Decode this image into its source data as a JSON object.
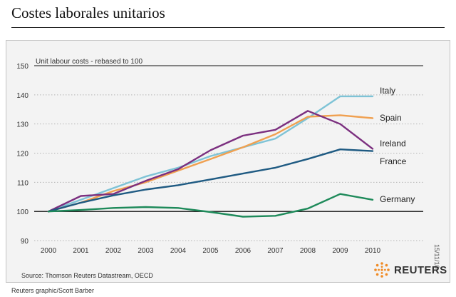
{
  "page": {
    "title": "Costes laborales unitarios",
    "source": "Source: Thomson Reuters Datastream, OECD",
    "credit": "Reuters graphic/Scott Barber",
    "datestamp": "15/11/10",
    "brand": "REUTERS"
  },
  "colors": {
    "panel_bg": "#f3f3f3",
    "baseline": "#000000",
    "brand_orange": "#f08a24"
  },
  "chart_data": {
    "type": "line",
    "subtitle": "Unit labour costs - rebased to 100",
    "x": [
      "2000",
      "2001",
      "2002",
      "2003",
      "2004",
      "2005",
      "2006",
      "2007",
      "2008",
      "2009",
      "2010"
    ],
    "ylim": [
      90,
      150
    ],
    "yticks": [
      90,
      100,
      110,
      120,
      130,
      140,
      150
    ],
    "reference_line": 100,
    "grid": "dotted-horizontal",
    "series": [
      {
        "name": "Italy",
        "color": "#7ec3d6",
        "values": [
          100,
          104,
          108,
          112,
          115,
          119,
          122,
          125,
          132,
          139.5,
          139.5
        ]
      },
      {
        "name": "Spain",
        "color": "#f0a050",
        "values": [
          100,
          103,
          107,
          110,
          114,
          118,
          122,
          126.5,
          132.5,
          133,
          132
        ]
      },
      {
        "name": "Ireland",
        "color": "#7b2f7f",
        "values": [
          100,
          105.3,
          106,
          110.5,
          114.5,
          121,
          126,
          128,
          134.5,
          130,
          121.5
        ]
      },
      {
        "name": "France",
        "color": "#1e5a82",
        "values": [
          100,
          103,
          105.5,
          107.5,
          109,
          111,
          113,
          115,
          118,
          121.3,
          120.7
        ]
      },
      {
        "name": "Germany",
        "color": "#1e8a5a",
        "values": [
          100,
          100.5,
          101.2,
          101.5,
          101.2,
          99.8,
          98.2,
          98.5,
          101,
          106,
          104
        ]
      }
    ]
  }
}
